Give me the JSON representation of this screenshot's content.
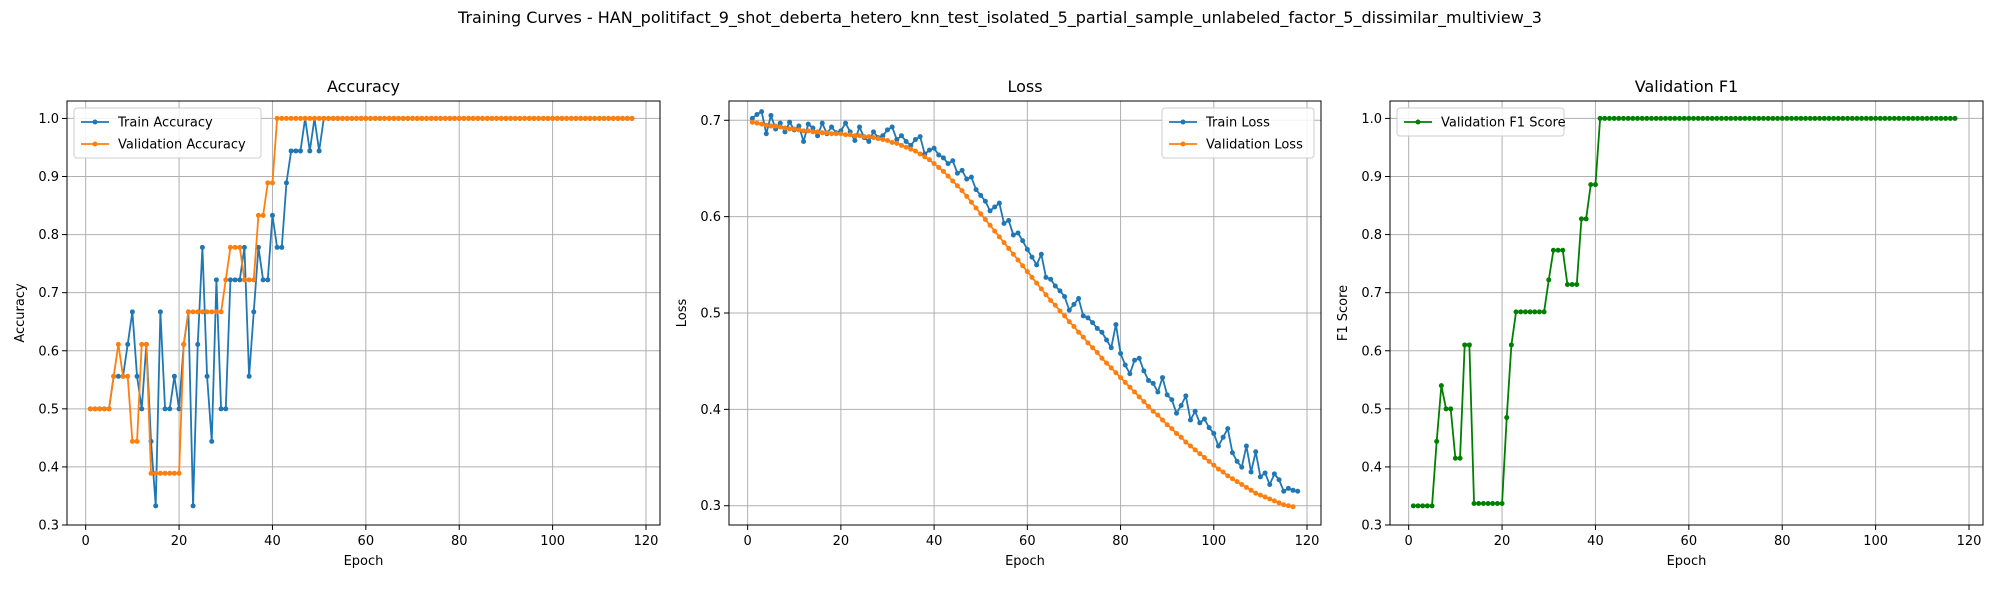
{
  "figure": {
    "title": "Training Curves - HAN_politifact_9_shot_deberta_hetero_knn_test_isolated_5_partial_sample_unlabeled_factor_5_dissimilar_multiview_3"
  },
  "chart_data": [
    {
      "type": "line",
      "title": "Accuracy",
      "xlabel": "Epoch",
      "ylabel": "Accuracy",
      "xlim": [
        -4,
        123
      ],
      "ylim": [
        0.3,
        1.03
      ],
      "xticks": [
        0,
        20,
        40,
        60,
        80,
        100,
        120
      ],
      "yticks": [
        0.3,
        0.4,
        0.5,
        0.6,
        0.7,
        0.8,
        0.9,
        1.0
      ],
      "ytick_labels": [
        "0.3",
        "0.4",
        "0.5",
        "0.6",
        "0.7",
        "0.8",
        "0.9",
        "1.0"
      ],
      "grid": true,
      "legend_position": "top-left",
      "series": [
        {
          "name": "Train Accuracy",
          "color": "#1f77b4",
          "x_start": 1,
          "values": [
            0.5,
            0.5,
            0.5,
            0.5,
            0.5,
            0.556,
            0.556,
            0.556,
            0.611,
            0.667,
            0.556,
            0.5,
            0.611,
            0.444,
            0.333,
            0.667,
            0.5,
            0.5,
            0.556,
            0.5,
            0.611,
            0.667,
            0.333,
            0.611,
            0.778,
            0.556,
            0.444,
            0.722,
            0.5,
            0.5,
            0.722,
            0.722,
            0.722,
            0.778,
            0.556,
            0.667,
            0.778,
            0.722,
            0.722,
            0.833,
            0.778,
            0.778,
            0.889,
            0.944,
            0.944,
            0.944,
            1.0,
            0.944,
            1.0,
            0.944,
            1.0,
            1.0,
            1.0,
            1.0,
            1.0,
            1.0,
            1.0,
            1.0,
            1.0,
            1.0,
            1.0,
            1.0,
            1.0,
            1.0,
            1.0,
            1.0,
            1.0,
            1.0,
            1.0,
            1.0,
            1.0,
            1.0,
            1.0,
            1.0,
            1.0,
            1.0,
            1.0,
            1.0,
            1.0,
            1.0,
            1.0,
            1.0,
            1.0,
            1.0,
            1.0,
            1.0,
            1.0,
            1.0,
            1.0,
            1.0,
            1.0,
            1.0,
            1.0,
            1.0,
            1.0,
            1.0,
            1.0,
            1.0,
            1.0,
            1.0,
            1.0,
            1.0,
            1.0,
            1.0,
            1.0,
            1.0,
            1.0,
            1.0,
            1.0,
            1.0,
            1.0,
            1.0,
            1.0,
            1.0,
            1.0,
            1.0,
            1.0
          ]
        },
        {
          "name": "Validation Accuracy",
          "color": "#ff7f0e",
          "x_start": 1,
          "values": [
            0.5,
            0.5,
            0.5,
            0.5,
            0.5,
            0.556,
            0.611,
            0.556,
            0.556,
            0.444,
            0.444,
            0.611,
            0.611,
            0.389,
            0.389,
            0.389,
            0.389,
            0.389,
            0.389,
            0.389,
            0.611,
            0.667,
            0.667,
            0.667,
            0.667,
            0.667,
            0.667,
            0.667,
            0.667,
            0.722,
            0.778,
            0.778,
            0.778,
            0.722,
            0.722,
            0.722,
            0.833,
            0.833,
            0.889,
            0.889,
            1.0,
            1.0,
            1.0,
            1.0,
            1.0,
            1.0,
            1.0,
            1.0,
            1.0,
            1.0,
            1.0,
            1.0,
            1.0,
            1.0,
            1.0,
            1.0,
            1.0,
            1.0,
            1.0,
            1.0,
            1.0,
            1.0,
            1.0,
            1.0,
            1.0,
            1.0,
            1.0,
            1.0,
            1.0,
            1.0,
            1.0,
            1.0,
            1.0,
            1.0,
            1.0,
            1.0,
            1.0,
            1.0,
            1.0,
            1.0,
            1.0,
            1.0,
            1.0,
            1.0,
            1.0,
            1.0,
            1.0,
            1.0,
            1.0,
            1.0,
            1.0,
            1.0,
            1.0,
            1.0,
            1.0,
            1.0,
            1.0,
            1.0,
            1.0,
            1.0,
            1.0,
            1.0,
            1.0,
            1.0,
            1.0,
            1.0,
            1.0,
            1.0,
            1.0,
            1.0,
            1.0,
            1.0,
            1.0,
            1.0,
            1.0,
            1.0,
            1.0
          ]
        }
      ]
    },
    {
      "type": "line",
      "title": "Loss",
      "xlabel": "Epoch",
      "ylabel": "Loss",
      "xlim": [
        -4,
        123
      ],
      "ylim": [
        0.28,
        0.72
      ],
      "xticks": [
        0,
        20,
        40,
        60,
        80,
        100,
        120
      ],
      "yticks": [
        0.3,
        0.4,
        0.5,
        0.6,
        0.7
      ],
      "ytick_labels": [
        "0.3",
        "0.4",
        "0.5",
        "0.6",
        "0.7"
      ],
      "grid": true,
      "legend_position": "top-right",
      "series": [
        {
          "name": "Train Loss",
          "color": "#1f77b4",
          "x_start": 1,
          "values": [
            0.702,
            0.706,
            0.709,
            0.686,
            0.705,
            0.691,
            0.697,
            0.688,
            0.698,
            0.69,
            0.694,
            0.678,
            0.696,
            0.692,
            0.684,
            0.697,
            0.686,
            0.693,
            0.687,
            0.689,
            0.697,
            0.688,
            0.679,
            0.693,
            0.682,
            0.678,
            0.688,
            0.682,
            0.684,
            0.69,
            0.693,
            0.68,
            0.684,
            0.678,
            0.674,
            0.68,
            0.683,
            0.665,
            0.669,
            0.671,
            0.664,
            0.661,
            0.655,
            0.658,
            0.645,
            0.648,
            0.639,
            0.641,
            0.628,
            0.622,
            0.616,
            0.606,
            0.61,
            0.614,
            0.593,
            0.596,
            0.581,
            0.583,
            0.575,
            0.566,
            0.558,
            0.55,
            0.561,
            0.537,
            0.535,
            0.528,
            0.523,
            0.517,
            0.503,
            0.509,
            0.515,
            0.497,
            0.495,
            0.49,
            0.484,
            0.48,
            0.472,
            0.464,
            0.488,
            0.458,
            0.446,
            0.437,
            0.451,
            0.453,
            0.44,
            0.43,
            0.427,
            0.418,
            0.433,
            0.415,
            0.41,
            0.396,
            0.404,
            0.414,
            0.389,
            0.398,
            0.386,
            0.39,
            0.381,
            0.375,
            0.362,
            0.371,
            0.38,
            0.355,
            0.346,
            0.34,
            0.362,
            0.335,
            0.356,
            0.33,
            0.334,
            0.322,
            0.333,
            0.327,
            0.315,
            0.318,
            0.316,
            0.315
          ]
        },
        {
          "name": "Validation Loss",
          "color": "#ff7f0e",
          "x_start": 1,
          "values": [
            0.698,
            0.697,
            0.696,
            0.695,
            0.694,
            0.694,
            0.693,
            0.692,
            0.691,
            0.691,
            0.69,
            0.689,
            0.689,
            0.688,
            0.688,
            0.687,
            0.687,
            0.686,
            0.686,
            0.686,
            0.685,
            0.685,
            0.684,
            0.684,
            0.683,
            0.683,
            0.682,
            0.681,
            0.68,
            0.679,
            0.677,
            0.676,
            0.674,
            0.672,
            0.67,
            0.668,
            0.665,
            0.662,
            0.659,
            0.655,
            0.651,
            0.647,
            0.642,
            0.637,
            0.632,
            0.627,
            0.621,
            0.615,
            0.609,
            0.603,
            0.597,
            0.591,
            0.585,
            0.579,
            0.573,
            0.567,
            0.561,
            0.555,
            0.549,
            0.543,
            0.537,
            0.531,
            0.525,
            0.519,
            0.513,
            0.508,
            0.502,
            0.497,
            0.491,
            0.486,
            0.48,
            0.475,
            0.469,
            0.464,
            0.459,
            0.453,
            0.448,
            0.443,
            0.438,
            0.433,
            0.428,
            0.423,
            0.418,
            0.413,
            0.408,
            0.403,
            0.398,
            0.394,
            0.389,
            0.384,
            0.38,
            0.375,
            0.371,
            0.366,
            0.362,
            0.358,
            0.354,
            0.35,
            0.346,
            0.342,
            0.338,
            0.335,
            0.331,
            0.328,
            0.325,
            0.322,
            0.319,
            0.316,
            0.313,
            0.311,
            0.309,
            0.307,
            0.305,
            0.303,
            0.301,
            0.3,
            0.299
          ]
        }
      ]
    },
    {
      "type": "line",
      "title": "Validation F1",
      "xlabel": "Epoch",
      "ylabel": "F1 Score",
      "xlim": [
        -4,
        123
      ],
      "ylim": [
        0.3,
        1.03
      ],
      "xticks": [
        0,
        20,
        40,
        60,
        80,
        100,
        120
      ],
      "yticks": [
        0.3,
        0.4,
        0.5,
        0.6,
        0.7,
        0.8,
        0.9,
        1.0
      ],
      "ytick_labels": [
        "0.3",
        "0.4",
        "0.5",
        "0.6",
        "0.7",
        "0.8",
        "0.9",
        "1.0"
      ],
      "grid": true,
      "legend_position": "top-left",
      "series": [
        {
          "name": "Validation F1 Score",
          "color": "#008000",
          "x_start": 1,
          "values": [
            0.333,
            0.333,
            0.333,
            0.333,
            0.333,
            0.444,
            0.54,
            0.5,
            0.5,
            0.415,
            0.415,
            0.61,
            0.61,
            0.337,
            0.337,
            0.337,
            0.337,
            0.337,
            0.337,
            0.337,
            0.485,
            0.61,
            0.667,
            0.667,
            0.667,
            0.667,
            0.667,
            0.667,
            0.667,
            0.722,
            0.773,
            0.773,
            0.773,
            0.714,
            0.714,
            0.714,
            0.827,
            0.827,
            0.886,
            0.886,
            1.0,
            1.0,
            1.0,
            1.0,
            1.0,
            1.0,
            1.0,
            1.0,
            1.0,
            1.0,
            1.0,
            1.0,
            1.0,
            1.0,
            1.0,
            1.0,
            1.0,
            1.0,
            1.0,
            1.0,
            1.0,
            1.0,
            1.0,
            1.0,
            1.0,
            1.0,
            1.0,
            1.0,
            1.0,
            1.0,
            1.0,
            1.0,
            1.0,
            1.0,
            1.0,
            1.0,
            1.0,
            1.0,
            1.0,
            1.0,
            1.0,
            1.0,
            1.0,
            1.0,
            1.0,
            1.0,
            1.0,
            1.0,
            1.0,
            1.0,
            1.0,
            1.0,
            1.0,
            1.0,
            1.0,
            1.0,
            1.0,
            1.0,
            1.0,
            1.0,
            1.0,
            1.0,
            1.0,
            1.0,
            1.0,
            1.0,
            1.0,
            1.0,
            1.0,
            1.0,
            1.0,
            1.0,
            1.0,
            1.0,
            1.0,
            1.0,
            1.0
          ]
        }
      ]
    }
  ]
}
